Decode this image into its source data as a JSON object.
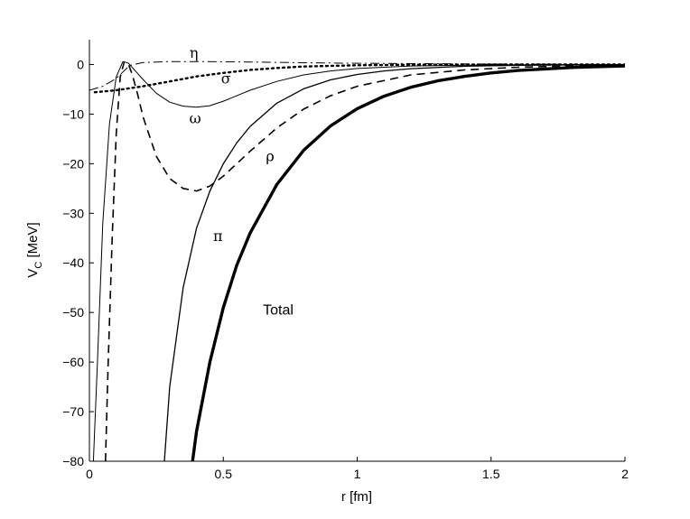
{
  "chart_data": {
    "type": "line",
    "title": "",
    "xlabel": "r   [fm]",
    "ylabel_main": "V",
    "ylabel_sub": "C",
    "ylabel_unit": "  [MeV]",
    "xlim": [
      0,
      2
    ],
    "ylim": [
      -80,
      5
    ],
    "grid": false,
    "x_ticks": [
      0,
      0.5,
      1,
      1.5,
      2
    ],
    "x_tick_labels": [
      "0",
      "0.5",
      "1",
      "1.5",
      "2"
    ],
    "y_ticks": [
      0,
      -10,
      -20,
      -30,
      -40,
      -50,
      -60,
      -70,
      -80
    ],
    "y_tick_labels": [
      "0",
      "−10",
      "−20",
      "−30",
      "−40",
      "−50",
      "−60",
      "−70",
      "−80"
    ],
    "series": [
      {
        "name": "η",
        "style": "dashdot",
        "width": 1,
        "color": "#000000",
        "points": [
          [
            0.0,
            -5.2
          ],
          [
            0.05,
            -4.4
          ],
          [
            0.1,
            -2.8
          ],
          [
            0.15,
            -0.2
          ],
          [
            0.2,
            0.4
          ],
          [
            0.3,
            0.6
          ],
          [
            0.4,
            0.6
          ],
          [
            0.6,
            0.5
          ],
          [
            0.8,
            0.35
          ],
          [
            1.0,
            0.25
          ],
          [
            1.5,
            0.08
          ],
          [
            2.0,
            0.02
          ]
        ]
      },
      {
        "name": "σ",
        "style": "dotted",
        "width": 2.4,
        "color": "#000000",
        "points": [
          [
            0.02,
            -5.6
          ],
          [
            0.1,
            -5.2
          ],
          [
            0.2,
            -4.4
          ],
          [
            0.3,
            -3.4
          ],
          [
            0.4,
            -2.4
          ],
          [
            0.5,
            -1.7
          ],
          [
            0.6,
            -1.1
          ],
          [
            0.7,
            -0.7
          ],
          [
            0.8,
            -0.4
          ],
          [
            1.0,
            -0.15
          ],
          [
            1.2,
            -0.05
          ],
          [
            1.5,
            0.0
          ],
          [
            2.0,
            0.0
          ]
        ]
      },
      {
        "name": "ω",
        "style": "solid",
        "width": 1,
        "color": "#000000",
        "points": [
          [
            0.015,
            -80
          ],
          [
            0.03,
            -60
          ],
          [
            0.05,
            -32
          ],
          [
            0.075,
            -12
          ],
          [
            0.1,
            -2.5
          ],
          [
            0.125,
            0.6
          ],
          [
            0.145,
            0.3
          ],
          [
            0.17,
            -1.2
          ],
          [
            0.2,
            -3.0
          ],
          [
            0.25,
            -5.8
          ],
          [
            0.3,
            -7.6
          ],
          [
            0.35,
            -8.4
          ],
          [
            0.4,
            -8.6
          ],
          [
            0.45,
            -8.3
          ],
          [
            0.5,
            -7.4
          ],
          [
            0.6,
            -5.2
          ],
          [
            0.7,
            -3.4
          ],
          [
            0.8,
            -2.1
          ],
          [
            0.9,
            -1.3
          ],
          [
            1.0,
            -0.8
          ],
          [
            1.2,
            -0.3
          ],
          [
            1.5,
            -0.08
          ],
          [
            2.0,
            -0.01
          ]
        ]
      },
      {
        "name": "ρ",
        "style": "dashed",
        "width": 1.6,
        "color": "#000000",
        "points": [
          [
            0.06,
            -80
          ],
          [
            0.07,
            -60
          ],
          [
            0.085,
            -35
          ],
          [
            0.1,
            -14
          ],
          [
            0.115,
            -2.5
          ],
          [
            0.13,
            0.5
          ],
          [
            0.145,
            0.2
          ],
          [
            0.16,
            -2.0
          ],
          [
            0.18,
            -6.0
          ],
          [
            0.2,
            -10.5
          ],
          [
            0.25,
            -18.5
          ],
          [
            0.3,
            -23.0
          ],
          [
            0.35,
            -25.0
          ],
          [
            0.4,
            -25.5
          ],
          [
            0.45,
            -24.5
          ],
          [
            0.5,
            -22.5
          ],
          [
            0.55,
            -20.0
          ],
          [
            0.6,
            -17.5
          ],
          [
            0.7,
            -12.8
          ],
          [
            0.8,
            -9.0
          ],
          [
            0.9,
            -6.3
          ],
          [
            1.0,
            -4.4
          ],
          [
            1.2,
            -2.1
          ],
          [
            1.4,
            -1.1
          ],
          [
            1.6,
            -0.55
          ],
          [
            1.8,
            -0.28
          ],
          [
            2.0,
            -0.15
          ]
        ]
      },
      {
        "name": "π",
        "style": "solid",
        "width": 1.3,
        "color": "#000000",
        "points": [
          [
            0.28,
            -80
          ],
          [
            0.3,
            -65
          ],
          [
            0.35,
            -45
          ],
          [
            0.4,
            -33
          ],
          [
            0.45,
            -25.5
          ],
          [
            0.5,
            -20
          ],
          [
            0.55,
            -15.8
          ],
          [
            0.6,
            -12.5
          ],
          [
            0.7,
            -7.8
          ],
          [
            0.8,
            -4.9
          ],
          [
            0.9,
            -3.1
          ],
          [
            1.0,
            -2.0
          ],
          [
            1.1,
            -1.3
          ],
          [
            1.2,
            -0.85
          ],
          [
            1.4,
            -0.35
          ],
          [
            1.6,
            -0.15
          ],
          [
            1.8,
            -0.06
          ],
          [
            2.0,
            -0.03
          ]
        ]
      },
      {
        "name": "Total",
        "style": "solid",
        "width": 3.4,
        "color": "#000000",
        "points": [
          [
            0.385,
            -80
          ],
          [
            0.4,
            -74
          ],
          [
            0.45,
            -60
          ],
          [
            0.5,
            -49
          ],
          [
            0.55,
            -40.5
          ],
          [
            0.6,
            -34
          ],
          [
            0.7,
            -24.2
          ],
          [
            0.8,
            -17.3
          ],
          [
            0.9,
            -12.4
          ],
          [
            1.0,
            -8.9
          ],
          [
            1.1,
            -6.4
          ],
          [
            1.2,
            -4.6
          ],
          [
            1.3,
            -3.3
          ],
          [
            1.4,
            -2.4
          ],
          [
            1.5,
            -1.7
          ],
          [
            1.6,
            -1.2
          ],
          [
            1.8,
            -0.6
          ],
          [
            2.0,
            -0.3
          ]
        ]
      }
    ],
    "annotations": [
      {
        "text": "η",
        "x": 0.39,
        "y": 1.4,
        "font": "serif"
      },
      {
        "text": "σ",
        "x": 0.51,
        "y": -3.8,
        "font": "serif"
      },
      {
        "text": "ω",
        "x": 0.395,
        "y": -11.8,
        "font": "serif"
      },
      {
        "text": "ρ",
        "x": 0.675,
        "y": -19.5,
        "font": "serif"
      },
      {
        "text": "π",
        "x": 0.48,
        "y": -35.6,
        "font": "serif"
      },
      {
        "text": "Total",
        "x": 0.705,
        "y": -50.4,
        "font": "sans"
      }
    ]
  }
}
